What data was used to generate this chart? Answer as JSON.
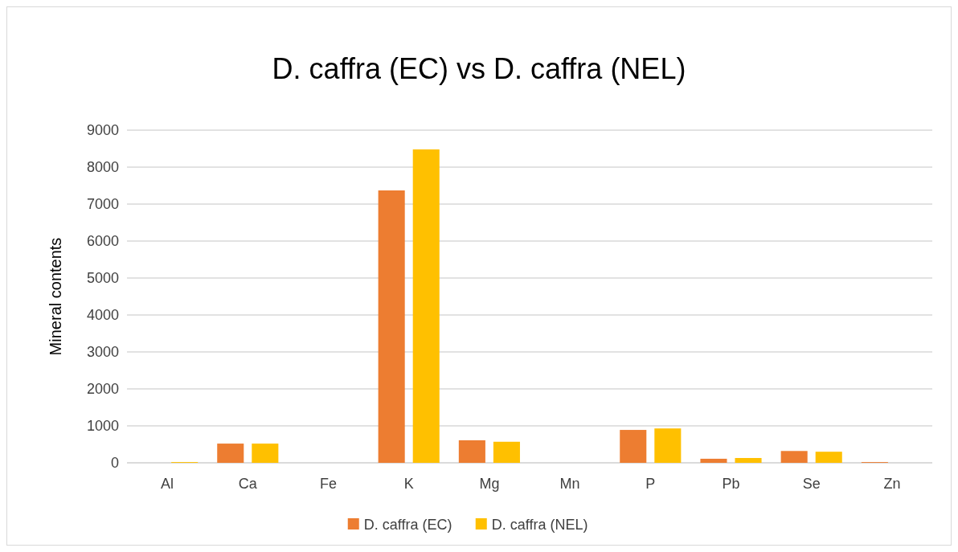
{
  "chart_data": {
    "type": "bar",
    "title": "D. caffra (EC) vs D. caffra (NEL)",
    "ylabel": "Mineral contents",
    "categories": [
      "Al",
      "Ca",
      "Fe",
      "K",
      "Mg",
      "Mn",
      "P",
      "Pb",
      "Se",
      "Zn"
    ],
    "series": [
      {
        "name": "D. caffra (EC)",
        "color": "#ed7d31",
        "values": [
          null,
          520,
          0,
          7370,
          610,
          0,
          890,
          110,
          320,
          20
        ]
      },
      {
        "name": "D. caffra (NEL)",
        "color": "#ffc000",
        "values": [
          20,
          520,
          0,
          8480,
          570,
          0,
          930,
          130,
          300,
          null
        ]
      }
    ],
    "ylim": [
      0,
      9000
    ],
    "yticks": [
      0,
      1000,
      2000,
      3000,
      4000,
      5000,
      6000,
      7000,
      8000,
      9000
    ],
    "grid": "y",
    "legend": "bottom"
  }
}
